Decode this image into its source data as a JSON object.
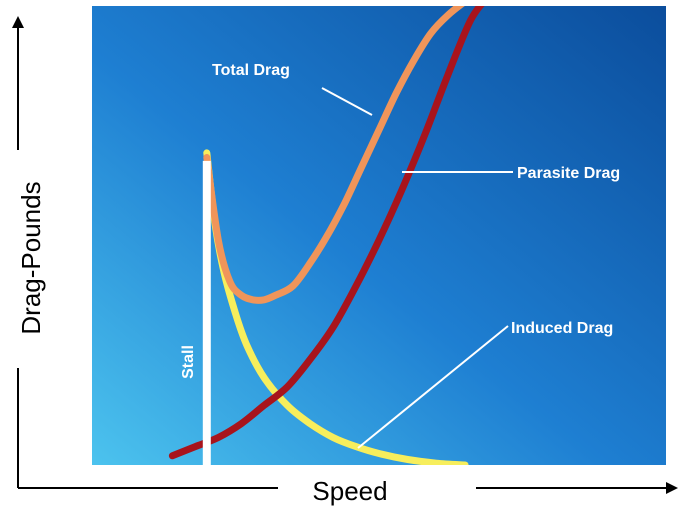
{
  "chart_data": {
    "type": "line",
    "title": "",
    "xlabel": "Speed",
    "ylabel": "Drag-Pounds",
    "x_ticks": "none",
    "y_ticks": "none",
    "grid": false,
    "xlim": [
      0,
      100
    ],
    "ylim": [
      0,
      100
    ],
    "stall": {
      "label": "Stall",
      "x": 20,
      "y_top": 68
    },
    "series": [
      {
        "name": "Total Drag",
        "color": "#f0955a",
        "x": [
          20,
          22,
          24,
          26,
          28,
          30,
          32,
          35,
          38,
          41,
          44,
          47,
          50,
          53,
          56,
          59,
          62,
          65
        ],
        "y": [
          67,
          49,
          40,
          37,
          36,
          36,
          37,
          39,
          44,
          50,
          57,
          65,
          73,
          81,
          88,
          94,
          98,
          101
        ]
      },
      {
        "name": "Parasite Drag",
        "color": "#a8141c",
        "x": [
          14,
          18,
          22,
          26,
          30,
          34,
          38,
          42,
          46,
          50,
          54,
          58,
          62,
          66,
          69
        ],
        "y": [
          2,
          4,
          6,
          9,
          13,
          17,
          23,
          30,
          39,
          49,
          60,
          72,
          85,
          97,
          102
        ]
      },
      {
        "name": "Induced Drag",
        "color": "#f7ee5c",
        "x": [
          20,
          21.5,
          23,
          25,
          27,
          30,
          34,
          38,
          42,
          46,
          50,
          55,
          60,
          65
        ],
        "y": [
          68,
          52,
          42,
          33,
          26,
          19,
          13,
          9,
          6,
          4,
          2.5,
          1.2,
          0.4,
          0
        ]
      }
    ]
  }
}
